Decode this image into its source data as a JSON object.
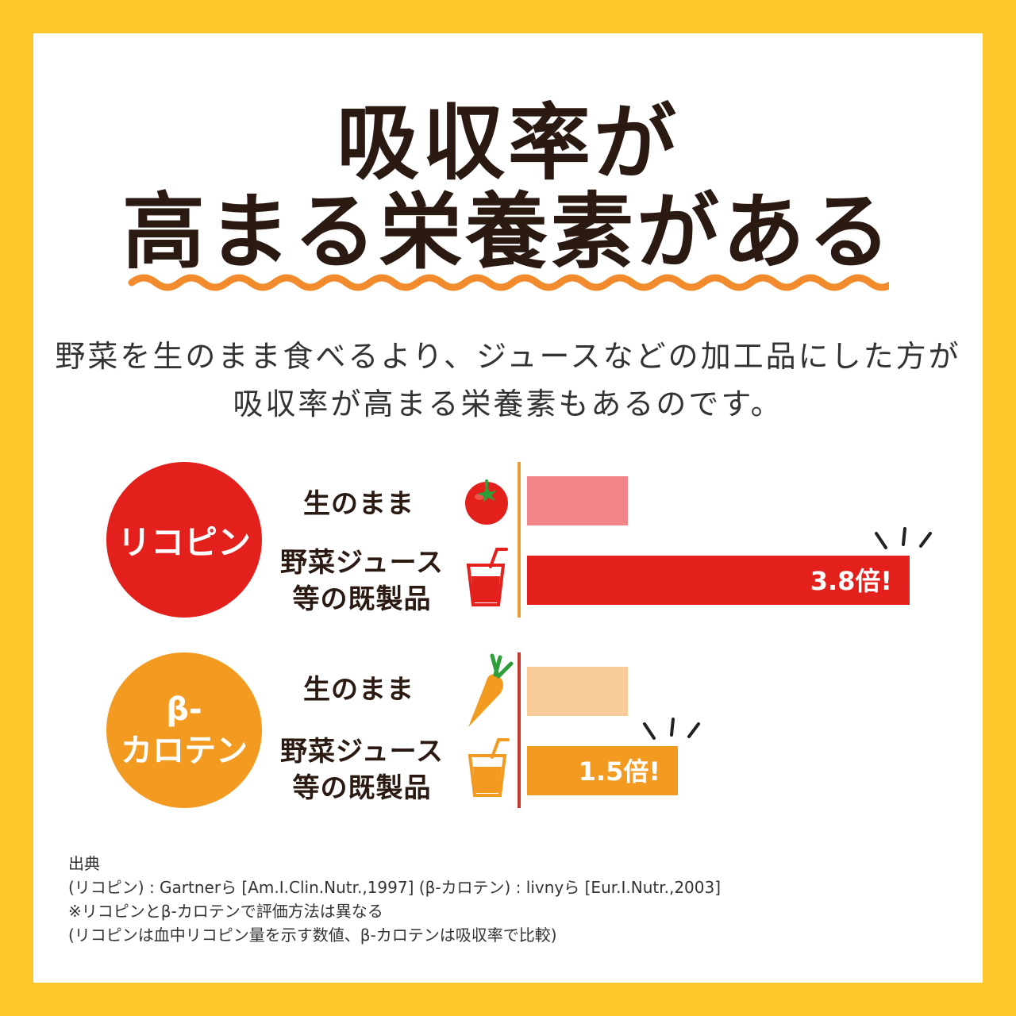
{
  "title": {
    "line1": "吸収率が",
    "line2": "高まる栄養素がある"
  },
  "subtitle": {
    "line1": "野菜を生のまま食べるより、ジュースなどの加工品にした方が",
    "line2": "吸収率が高まる栄養素もあるのです。"
  },
  "colors": {
    "background": "#FDC72B",
    "lycopene": "#E3201B",
    "lycopene_raw": "#F2858A",
    "beta_carotene": "#F39A20",
    "beta_carotene_raw": "#F8CB98",
    "wave": "#F28B2C"
  },
  "chart_data": {
    "type": "bar",
    "orientation": "horizontal",
    "groups": [
      {
        "name": "リコピン",
        "icons": [
          "tomato-icon",
          "juice-glass-red-icon"
        ],
        "categories": [
          "生のまま",
          "野菜ジュース等の既製品"
        ],
        "values": [
          1.0,
          3.8
        ],
        "data_label": "3.8倍!"
      },
      {
        "name": "β-カロテン",
        "icons": [
          "carrot-icon",
          "juice-glass-orange-icon"
        ],
        "categories": [
          "生のまま",
          "野菜ジュース等の既製品"
        ],
        "values": [
          1.0,
          1.5
        ],
        "data_label": "1.5倍!"
      }
    ],
    "xlim": [
      0,
      3.8
    ],
    "grid": false
  },
  "badges": {
    "lycopene": "リコピン",
    "beta_line1": "β-",
    "beta_line2": "カロテン"
  },
  "labels": {
    "raw": "生のまま",
    "juice_line1": "野菜ジュース",
    "juice_line2": "等の既製品"
  },
  "notes": [
    "出典",
    "(リコピン) : Gartnerら [Am.I.Clin.Nutr.,1997] (β-カロテン) : livnyら [Eur.I.Nutr.,2003]",
    "※リコピンとβ-カロテンで評価方法は異なる",
    "(リコピンは血中リコピン量を示す数値、β-カロテンは吸収率で比較)"
  ]
}
